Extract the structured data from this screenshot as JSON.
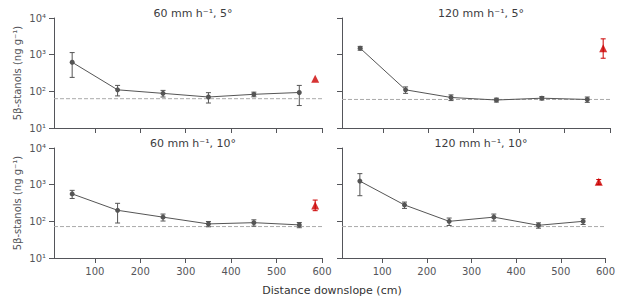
{
  "chart_data": [
    {
      "type": "line",
      "title": "60 mm h⁻¹, 5°",
      "ylabel": "5β-stanols (ng g⁻¹)",
      "log": "y",
      "grid": false,
      "tick_labels": "y",
      "xlim": [
        10,
        600
      ],
      "xticks": [
        100,
        200,
        300,
        400,
        500,
        600
      ],
      "ylim": [
        10,
        10000
      ],
      "yticks": [
        {
          "value": 10,
          "label": "10¹"
        },
        {
          "value": 100,
          "label": "10²"
        },
        {
          "value": 1000,
          "label": "10³"
        },
        {
          "value": 10000,
          "label": "10⁴"
        }
      ],
      "series": [
        {
          "type": "line",
          "marker": "circle",
          "line_style": "solid",
          "color": "#555555",
          "x": [
            50,
            150,
            250,
            350,
            450,
            550
          ],
          "values": [
            620,
            110,
            88,
            70,
            83,
            93
          ],
          "yerr_low": [
            380,
            35,
            18,
            22,
            12,
            52
          ],
          "yerr_high": [
            520,
            35,
            18,
            22,
            12,
            52
          ]
        },
        {
          "type": "scatter",
          "marker": "triangle",
          "color": "#cc0000",
          "x": [
            585
          ],
          "values": [
            220
          ],
          "yerr_low": [
            0
          ],
          "yerr_high": [
            0
          ]
        },
        {
          "type": "hline",
          "line_style": "dashed",
          "color": "#aaaaaa",
          "values": [
            63
          ]
        }
      ]
    },
    {
      "type": "line",
      "title": "120 mm h⁻¹, 5°",
      "log": "y",
      "grid": false,
      "tick_labels": false,
      "xlim": [
        10,
        600
      ],
      "xticks": [
        100,
        200,
        300,
        400,
        500,
        600
      ],
      "ylim": [
        10,
        10000
      ],
      "yticks": [
        {
          "value": 10,
          "label": "10¹"
        },
        {
          "value": 100,
          "label": "10²"
        },
        {
          "value": 1000,
          "label": "10³"
        },
        {
          "value": 10000,
          "label": "10⁴"
        }
      ],
      "series": [
        {
          "type": "line",
          "marker": "circle",
          "line_style": "solid",
          "color": "#555555",
          "x": [
            50,
            150,
            250,
            350,
            450,
            550
          ],
          "values": [
            1500,
            110,
            68,
            58,
            65,
            60
          ],
          "yerr_low": [
            180,
            22,
            12,
            7,
            7,
            10
          ],
          "yerr_high": [
            180,
            22,
            12,
            7,
            7,
            10
          ]
        },
        {
          "type": "scatter",
          "marker": "triangle",
          "color": "#cc0000",
          "x": [
            585
          ],
          "values": [
            1500
          ],
          "yerr_low": [
            700
          ],
          "yerr_high": [
            1200
          ]
        },
        {
          "type": "hline",
          "line_style": "dashed",
          "color": "#aaaaaa",
          "values": [
            60
          ]
        }
      ]
    },
    {
      "type": "line",
      "title": "60 mm h⁻¹, 10°",
      "ylabel": "5β-stanols (ng g⁻¹)",
      "xlabel": "Distance downslope (cm)",
      "log": "y",
      "grid": false,
      "tick_labels": true,
      "xlim": [
        10,
        600
      ],
      "xticks": [
        100,
        200,
        300,
        400,
        500,
        600
      ],
      "ylim": [
        10,
        10000
      ],
      "yticks": [
        {
          "value": 10,
          "label": "10¹"
        },
        {
          "value": 100,
          "label": "10²"
        },
        {
          "value": 1000,
          "label": "10³"
        },
        {
          "value": 10000,
          "label": "10⁴"
        }
      ],
      "series": [
        {
          "type": "line",
          "marker": "circle",
          "line_style": "solid",
          "color": "#555555",
          "x": [
            50,
            150,
            250,
            350,
            450,
            550
          ],
          "values": [
            560,
            200,
            130,
            85,
            92,
            80
          ],
          "yerr_low": [
            140,
            110,
            28,
            14,
            18,
            13
          ],
          "yerr_high": [
            140,
            110,
            28,
            14,
            18,
            13
          ]
        },
        {
          "type": "scatter",
          "marker": "triangle",
          "color": "#cc0000",
          "x": [
            585
          ],
          "values": [
            270
          ],
          "yerr_low": [
            75
          ],
          "yerr_high": [
            110
          ]
        },
        {
          "type": "hline",
          "line_style": "dashed",
          "color": "#aaaaaa",
          "values": [
            72
          ]
        }
      ]
    },
    {
      "type": "line",
      "title": "120 mm h⁻¹, 10°",
      "log": "y",
      "grid": false,
      "tick_labels": "x",
      "xlim": [
        10,
        600
      ],
      "xticks": [
        100,
        200,
        300,
        400,
        500,
        600
      ],
      "ylim": [
        10,
        10000
      ],
      "yticks": [
        {
          "value": 10,
          "label": "10¹"
        },
        {
          "value": 100,
          "label": "10²"
        },
        {
          "value": 1000,
          "label": "10³"
        },
        {
          "value": 10000,
          "label": "10⁴"
        }
      ],
      "series": [
        {
          "type": "line",
          "marker": "circle",
          "line_style": "solid",
          "color": "#555555",
          "x": [
            50,
            150,
            250,
            350,
            450,
            550
          ],
          "values": [
            1250,
            280,
            100,
            130,
            78,
            100
          ],
          "yerr_low": [
            750,
            55,
            23,
            28,
            13,
            18
          ],
          "yerr_high": [
            750,
            55,
            23,
            28,
            13,
            18
          ]
        },
        {
          "type": "scatter",
          "marker": "triangle",
          "color": "#cc0000",
          "x": [
            585
          ],
          "values": [
            1200
          ],
          "yerr_low": [
            180
          ],
          "yerr_high": [
            180
          ]
        },
        {
          "type": "hline",
          "line_style": "dashed",
          "color": "#aaaaaa",
          "values": [
            72
          ]
        }
      ]
    }
  ]
}
